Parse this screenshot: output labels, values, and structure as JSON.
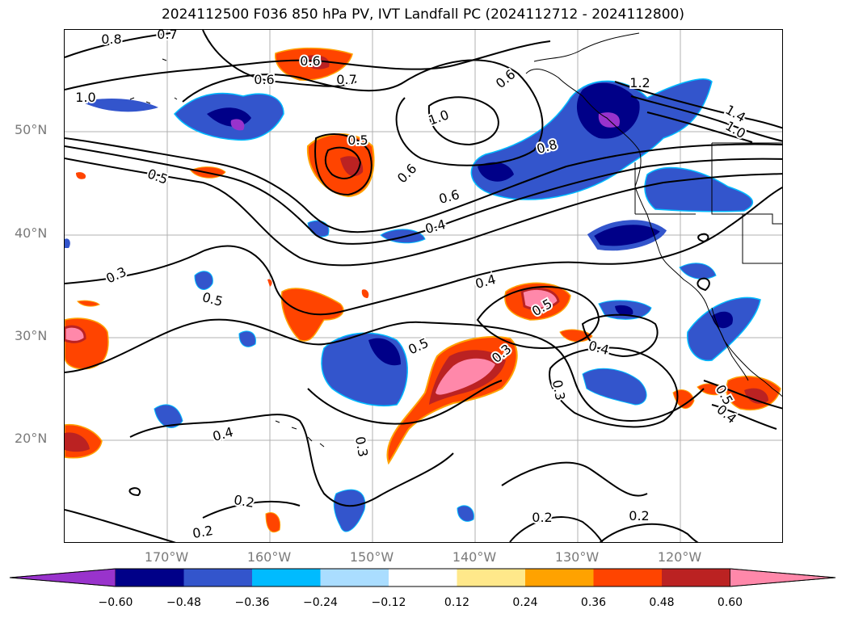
{
  "title": "2024112500 F036 850 hPa PV, IVT Landfall PC (2024112712 - 2024112800)",
  "lat_labels": [
    "50°N",
    "40°N",
    "30°N",
    "20°N"
  ],
  "lon_labels": [
    "170°W",
    "160°W",
    "150°W",
    "140°W",
    "130°W",
    "120°W"
  ],
  "colorbar": {
    "ticks": [
      "−0.60",
      "−0.48",
      "−0.36",
      "−0.24",
      "−0.12",
      "0.12",
      "0.24",
      "0.36",
      "0.48",
      "0.60"
    ],
    "colors": [
      "#9933cc",
      "#000088",
      "#3355cc",
      "#00bbff",
      "#aaddff",
      "#ffffff",
      "#ffe88a",
      "#ffa200",
      "#ff4400",
      "#bb2222",
      "#ff88aa"
    ]
  },
  "contour_labels": [
    "0.8",
    "0.7",
    "0.6",
    "0.6",
    "0.7",
    "1.0",
    "0.6",
    "1.2",
    "1.4",
    "1.0",
    "1.0",
    "0.5",
    "0.8",
    "0.5",
    "0.6",
    "0.6",
    "0.4",
    "0.3",
    "0.5",
    "0.4",
    "0.5",
    "0.5",
    "0.3",
    "0.4",
    "0.3",
    "0.5",
    "0.4",
    "0.3",
    "0.4",
    "0.2",
    "0.2",
    "0.2",
    "0.2"
  ]
}
